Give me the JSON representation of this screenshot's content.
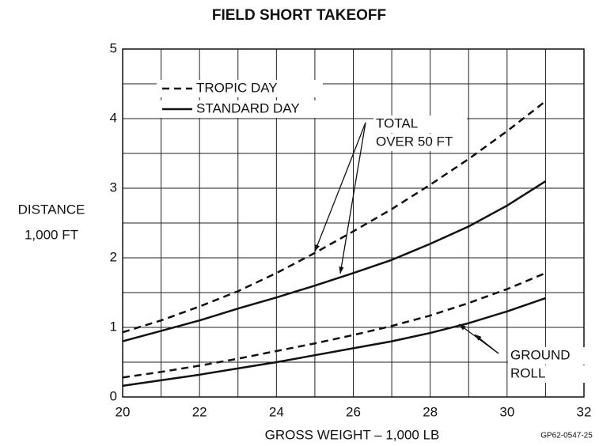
{
  "chart_data": {
    "type": "line",
    "title": "FIELD SHORT TAKEOFF",
    "y_label": [
      "DISTANCE",
      "1,000 FT"
    ],
    "x_label": "GROSS WEIGHT – 1,000 LB",
    "figure_code": "GP62-0547-25",
    "xlim": [
      20,
      32
    ],
    "ylim": [
      0,
      5
    ],
    "xticks": [
      20,
      22,
      24,
      26,
      28,
      30,
      32
    ],
    "yticks": [
      0,
      1,
      2,
      3,
      4,
      5
    ],
    "xgrid": [
      20,
      21,
      22,
      23,
      24,
      25,
      26,
      27,
      28,
      29,
      30,
      31,
      32
    ],
    "ygrid": [
      0,
      0.5,
      1,
      1.5,
      2,
      2.5,
      3,
      3.5,
      4,
      4.5,
      5
    ],
    "grid": true,
    "color": "#111111",
    "legend": [
      {
        "name": "TROPIC DAY",
        "dash": true
      },
      {
        "name": "STANDARD DAY",
        "dash": false
      }
    ],
    "x": [
      20,
      21,
      22,
      23,
      24,
      25,
      26,
      27,
      28,
      29,
      30,
      31
    ],
    "series": [
      {
        "legend": 0,
        "values": [
          0.93,
          1.1,
          1.3,
          1.52,
          1.78,
          2.07,
          2.38,
          2.7,
          3.05,
          3.42,
          3.82,
          4.25
        ]
      },
      {
        "legend": 1,
        "values": [
          0.8,
          0.95,
          1.1,
          1.27,
          1.43,
          1.6,
          1.78,
          1.97,
          2.2,
          2.45,
          2.75,
          3.1
        ]
      },
      {
        "legend": 0,
        "values": [
          0.28,
          0.36,
          0.45,
          0.55,
          0.66,
          0.77,
          0.89,
          1.02,
          1.17,
          1.35,
          1.55,
          1.78
        ]
      },
      {
        "legend": 1,
        "values": [
          0.16,
          0.24,
          0.32,
          0.41,
          0.5,
          0.6,
          0.7,
          0.8,
          0.92,
          1.06,
          1.23,
          1.42
        ]
      }
    ],
    "annotations": [
      [
        "TOTAL",
        "OVER 50 FT"
      ],
      [
        "GROUND",
        "ROLL"
      ]
    ]
  }
}
